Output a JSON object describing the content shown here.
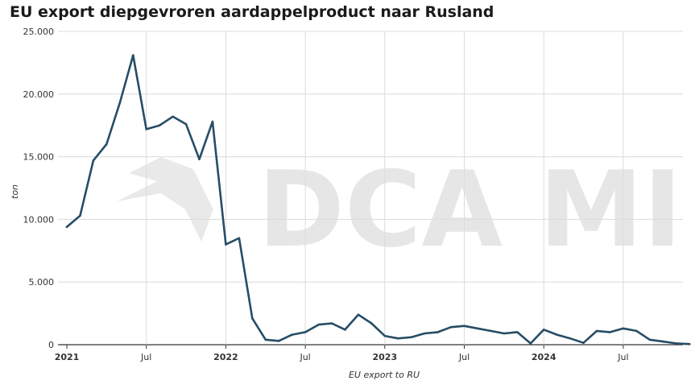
{
  "chart_data": {
    "type": "line",
    "title": "EU export diepgevroren aardappelproduct naar Rusland",
    "ylabel": "ton",
    "xlabel": "EU export to RU",
    "ylim": [
      0,
      25000
    ],
    "y_ticks": [
      0,
      5000,
      10000,
      15000,
      20000,
      25000
    ],
    "y_tick_labels": [
      "0",
      "5.000",
      "10.000",
      "15.000",
      "20.000",
      "25.000"
    ],
    "x_ticks": [
      {
        "label": "2021",
        "index": 0,
        "year": true
      },
      {
        "label": "Jul",
        "index": 6,
        "year": false
      },
      {
        "label": "2022",
        "index": 12,
        "year": true
      },
      {
        "label": "Jul",
        "index": 18,
        "year": false
      },
      {
        "label": "2023",
        "index": 24,
        "year": true
      },
      {
        "label": "Jul",
        "index": 30,
        "year": false
      },
      {
        "label": "2024",
        "index": 36,
        "year": true
      },
      {
        "label": "Jul",
        "index": 42,
        "year": false
      }
    ],
    "grid": true,
    "watermark": "DCA MI",
    "series": [
      {
        "color": "#264d66",
        "x": [
          "2021-01",
          "2021-02",
          "2021-03",
          "2021-04",
          "2021-05",
          "2021-06",
          "2021-07",
          "2021-08",
          "2021-09",
          "2021-10",
          "2021-11",
          "2021-12",
          "2022-01",
          "2022-02",
          "2022-03",
          "2022-04",
          "2022-05",
          "2022-06",
          "2022-07",
          "2022-08",
          "2022-09",
          "2022-10",
          "2022-11",
          "2022-12",
          "2023-01",
          "2023-02",
          "2023-03",
          "2023-04",
          "2023-05",
          "2023-06",
          "2023-07",
          "2023-08",
          "2023-09",
          "2023-10",
          "2023-11",
          "2023-12",
          "2024-01",
          "2024-02",
          "2024-03",
          "2024-04",
          "2024-05",
          "2024-06",
          "2024-07",
          "2024-08",
          "2024-09",
          "2024-10",
          "2024-11",
          "2024-12"
        ],
        "values": [
          9400,
          10300,
          14700,
          16000,
          19300,
          23100,
          17200,
          17500,
          18200,
          17600,
          14800,
          17800,
          8000,
          8500,
          2100,
          400,
          300,
          800,
          1000,
          1600,
          1700,
          1200,
          2400,
          1700,
          700,
          500,
          600,
          900,
          1000,
          1400,
          1500,
          1300,
          1100,
          900,
          1000,
          100,
          1200,
          800,
          500,
          150,
          1100,
          1000,
          1300,
          1100,
          400,
          250,
          100,
          50
        ]
      }
    ]
  }
}
